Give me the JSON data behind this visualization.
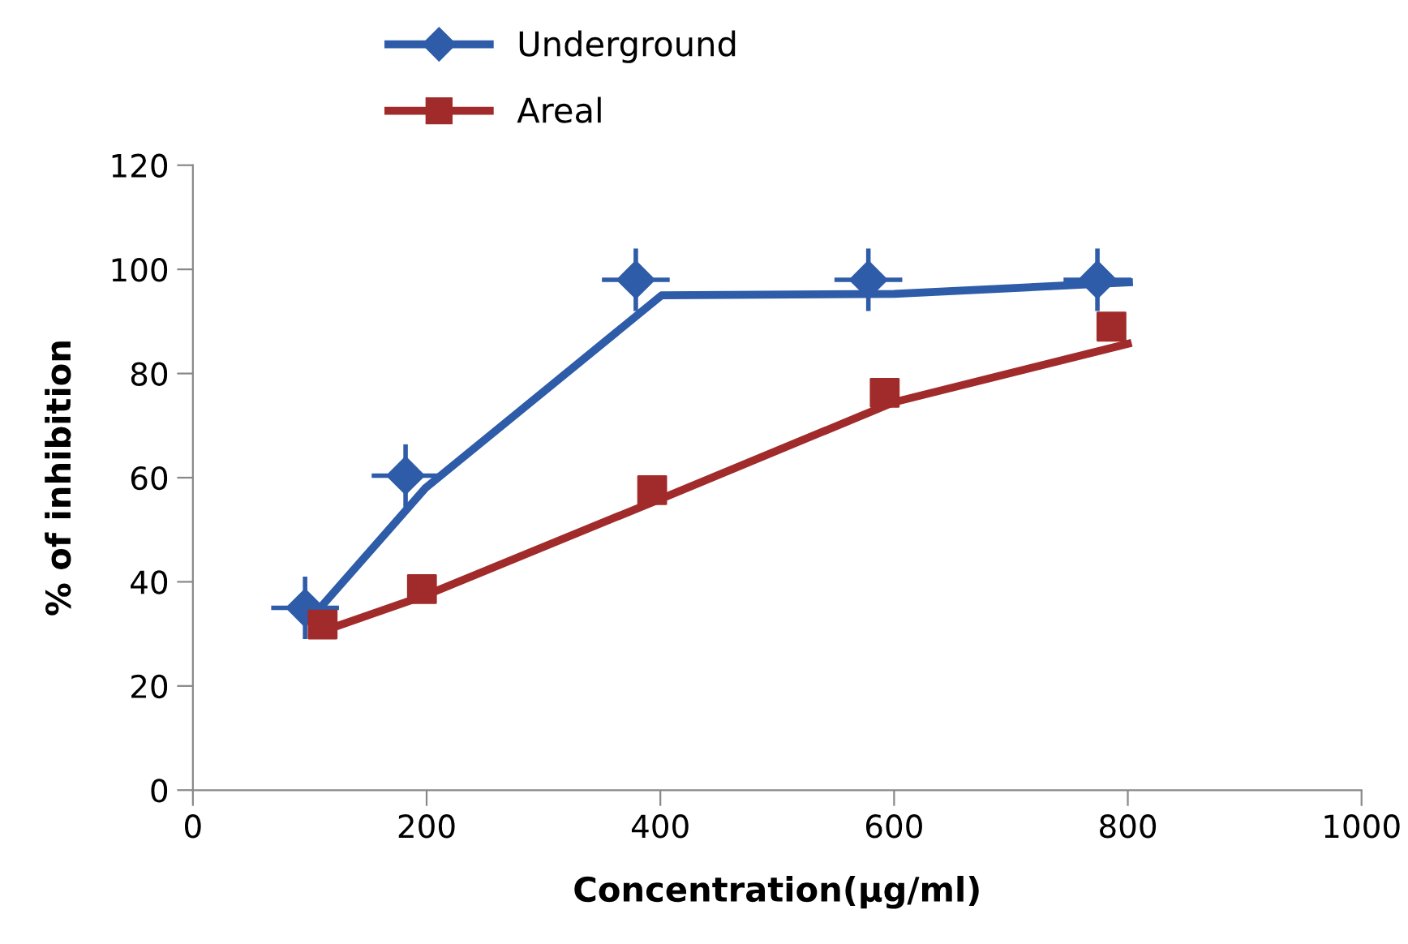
{
  "chart_data": {
    "type": "scatter",
    "xlabel": "Concentration(µg/ml)",
    "ylabel": "% of inhibition",
    "xlim": [
      0,
      1000
    ],
    "xticks": [
      0,
      200,
      400,
      600,
      800,
      1000
    ],
    "ylim": [
      0,
      120
    ],
    "yticks": [
      0,
      20,
      40,
      60,
      80,
      100,
      120
    ],
    "grid": false,
    "legend": "top",
    "series": [
      {
        "name": "Underground",
        "color": "#2e5ca8",
        "marker": "diamond",
        "x": [
          96,
          182,
          379,
          578,
          774
        ],
        "values": [
          35,
          60.4,
          98,
          98,
          98
        ],
        "errors": [
          6,
          6,
          6,
          6,
          6
        ],
        "xerrors": [
          29,
          29,
          29,
          29,
          29
        ]
      },
      {
        "type": "line",
        "color": "#2e5ca8",
        "marker": "none",
        "x": [
          105,
          199,
          401,
          600,
          801
        ],
        "values": [
          34,
          58,
          95,
          95.3,
          97.5
        ]
      },
      {
        "name": "Areal",
        "color": "#a12b2b",
        "marker": "square",
        "x": [
          111,
          196,
          393,
          592,
          786
        ],
        "values": [
          31.8,
          38.6,
          57.6,
          76.3,
          89
        ]
      },
      {
        "type": "line",
        "color": "#a12b2b",
        "marker": "none",
        "x": [
          117,
          200,
          401,
          600,
          800
        ],
        "values": [
          31,
          37.5,
          56,
          74.5,
          85.7
        ]
      }
    ]
  }
}
